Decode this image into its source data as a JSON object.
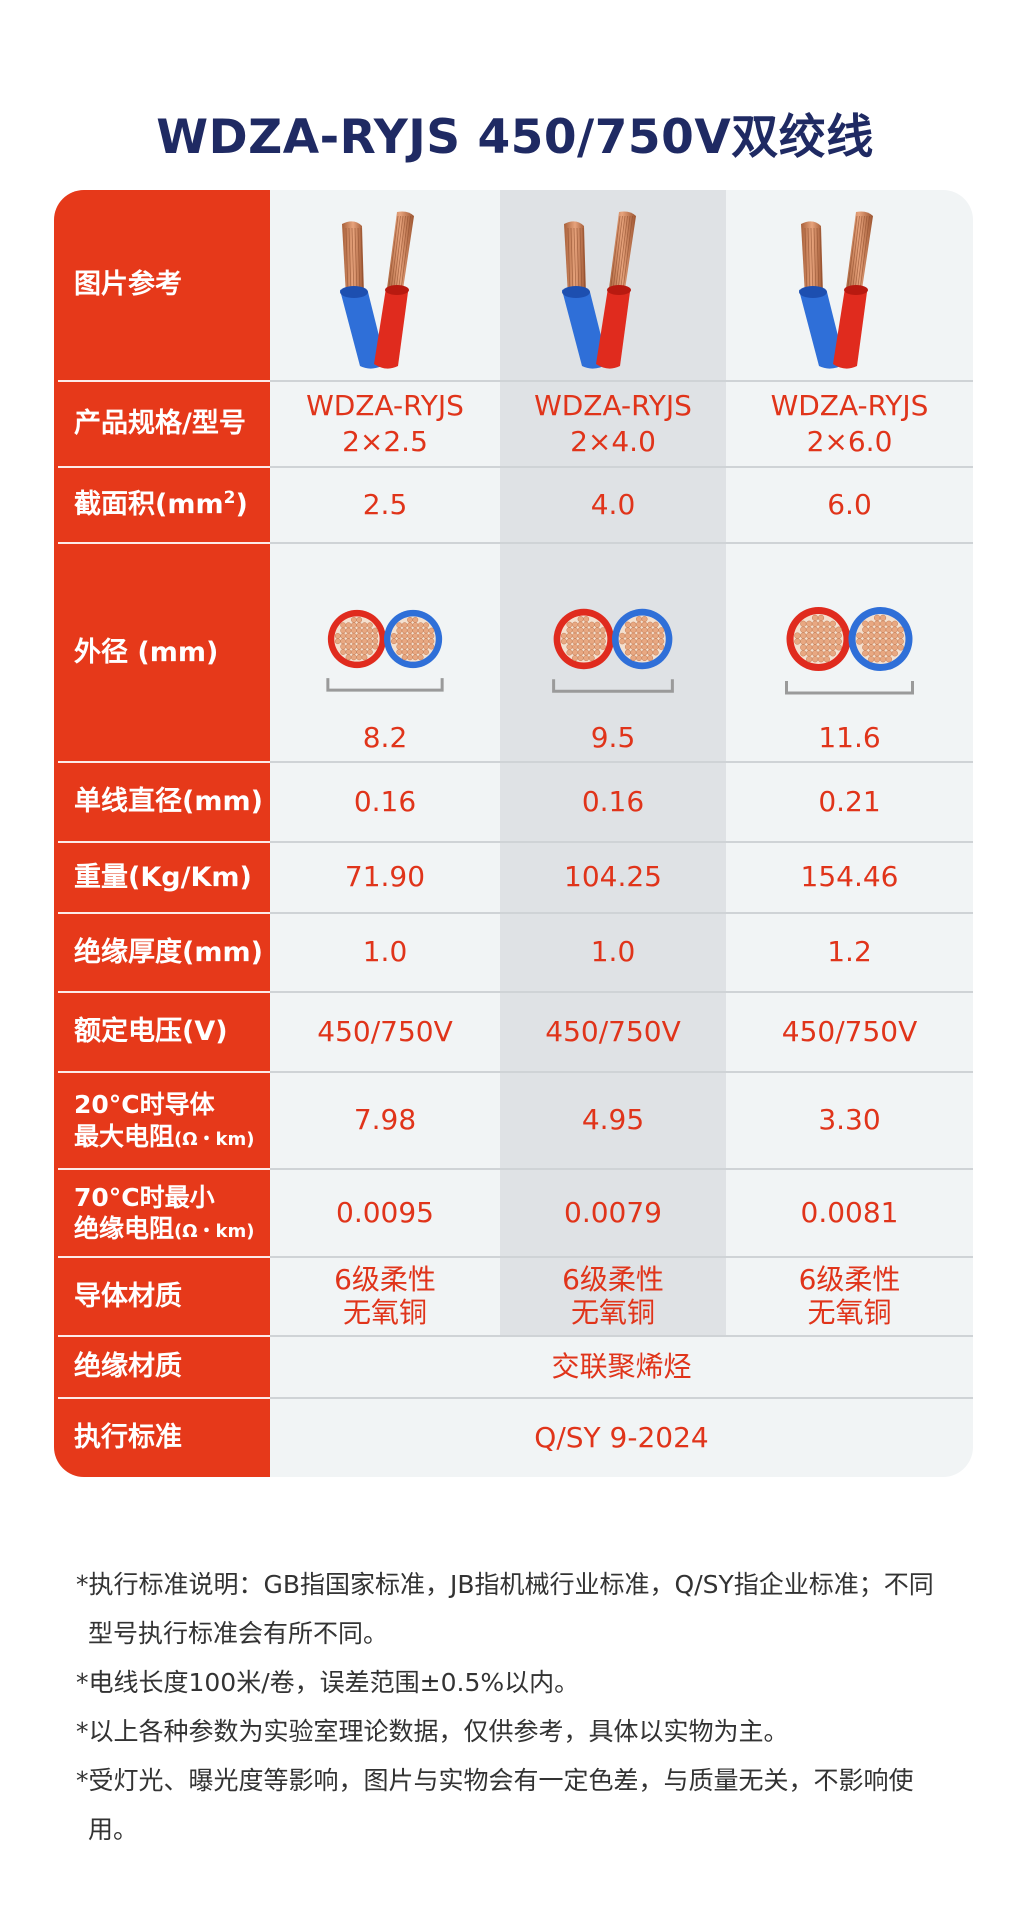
{
  "title": "WDZA-RYJS 450/750V双绞线",
  "row_labels": {
    "image": "图片参考",
    "spec": "产品规格/型号",
    "area": "截面积(mm",
    "area_sup": "2",
    "area_end": ")",
    "outer": "外径 (mm)",
    "wire_dia": "单线直径(mm)",
    "weight": "重量(Kg/Km)",
    "insul_thick": "绝缘厚度(mm)",
    "voltage": "额定电压(V)",
    "res20_l1": "20°C时导体",
    "res20_l2": "最大电阻",
    "res20_unit": "(Ω・km)",
    "ins70_l1": "70°C时最小",
    "ins70_l2": "绝缘电阻",
    "ins70_unit": "(Ω・km)",
    "conductor": "导体材质",
    "insulation": "绝缘材质",
    "standard": "执行标准"
  },
  "columns": [
    {
      "model": "WDZA-RYJS",
      "size": "2×2.5",
      "area": "2.5",
      "outer": "8.2",
      "wire_dia": "0.16",
      "weight": "71.90",
      "insul_thick": "1.0",
      "voltage": "450/750V",
      "res20": "7.98",
      "ins70": "0.0095",
      "conductor_l1": "6级柔性",
      "conductor_l2": "无氧铜"
    },
    {
      "model": "WDZA-RYJS",
      "size": "2×4.0",
      "area": "4.0",
      "outer": "9.5",
      "wire_dia": "0.16",
      "weight": "104.25",
      "insul_thick": "1.0",
      "voltage": "450/750V",
      "res20": "4.95",
      "ins70": "0.0079",
      "conductor_l1": "6级柔性",
      "conductor_l2": "无氧铜"
    },
    {
      "model": "WDZA-RYJS",
      "size": "2×6.0",
      "area": "6.0",
      "outer": "11.6",
      "wire_dia": "0.21",
      "weight": "154.46",
      "insul_thick": "1.2",
      "voltage": "450/750V",
      "res20": "3.30",
      "ins70": "0.0081",
      "conductor_l1": "6级柔性",
      "conductor_l2": "无氧铜"
    }
  ],
  "insulation_material": "交联聚烯烃",
  "standard_value": "Q/SY 9-2024",
  "footnotes": [
    "*执行标准说明：GB指国家标准，JB指机械行业标准，Q/SY指企业标准；不同型号执行标准会有所不同。",
    "*电线长度100米/卷，误差范围±0.5%以内。",
    "*以上各种参数为实验室理论数据，仅供参考，具体以实物为主。",
    "*受灯光、曝光度等影响，图片与实物会有一定色差，与质量无关，不影响使用。"
  ],
  "colors": {
    "label_bg": "#e6391a",
    "value_text": "#e0341a",
    "title_text": "#1f2a63",
    "insulation_red": "#e02b1e",
    "insulation_blue": "#2f6fd8",
    "copper": "#e8a882"
  }
}
